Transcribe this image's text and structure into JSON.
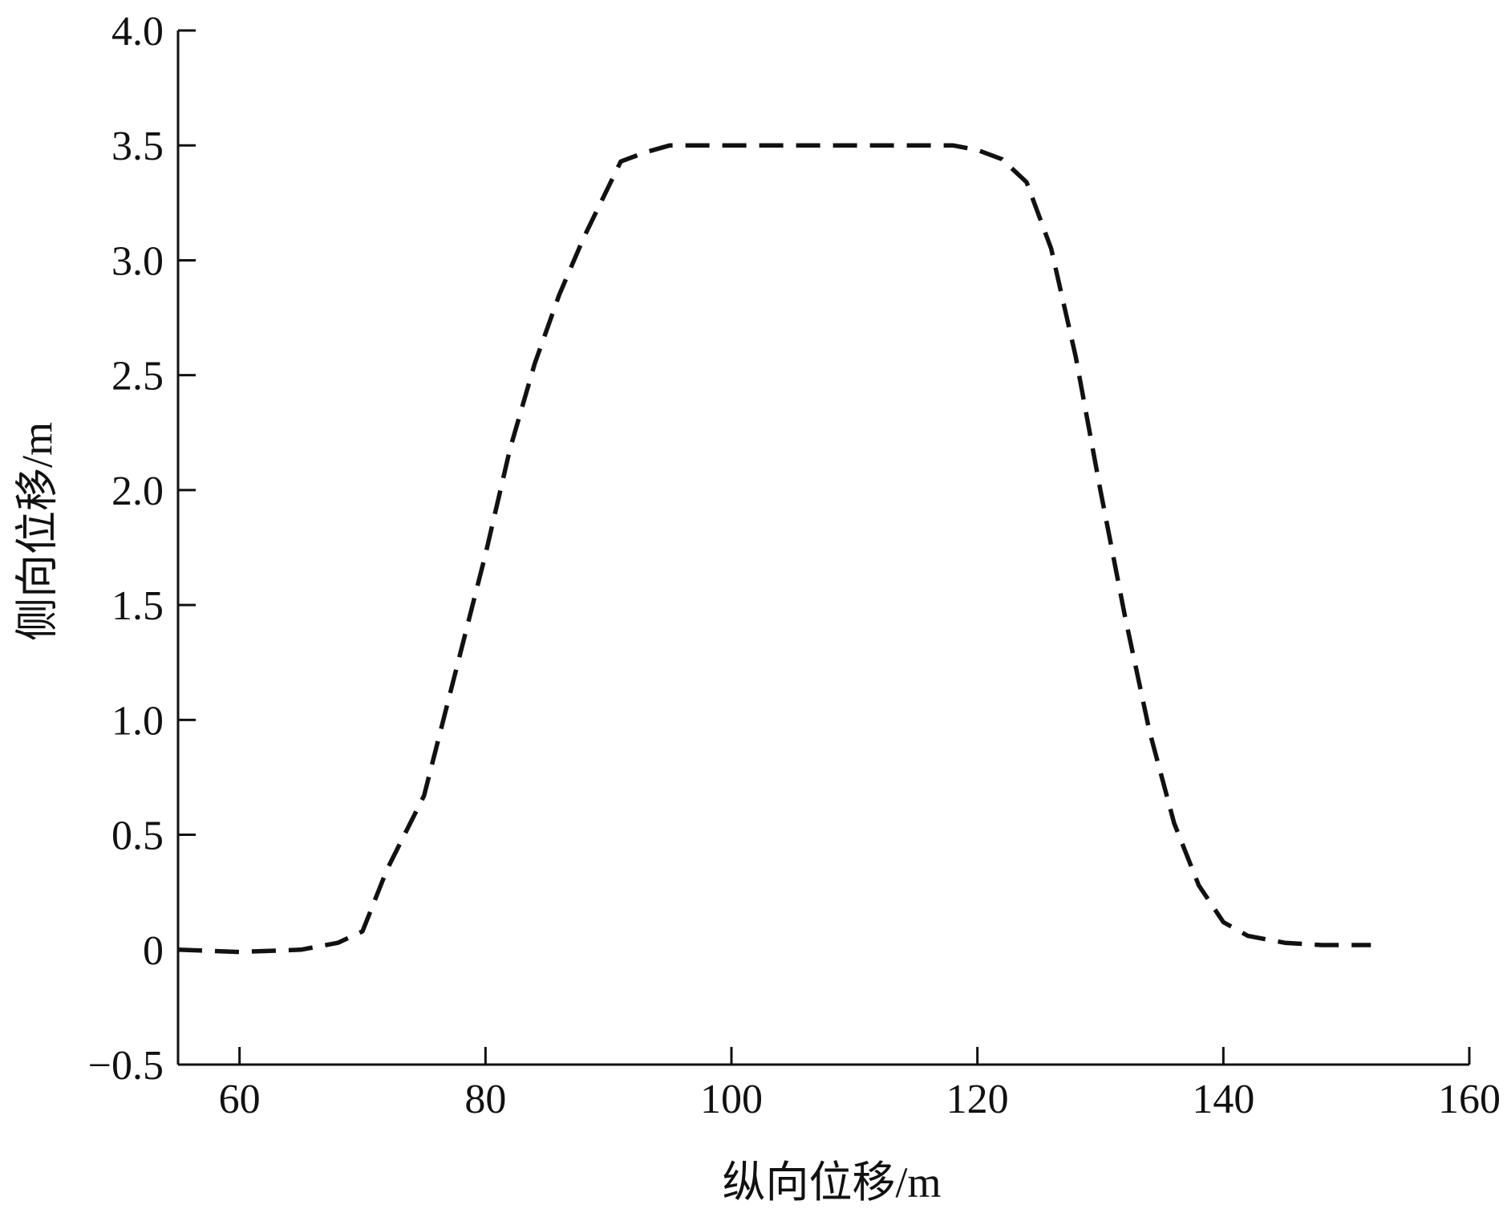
{
  "chart_data": {
    "type": "line",
    "title": "",
    "xlabel": "纵向位移/m",
    "ylabel": "侧向位移/m",
    "xlim": [
      55,
      160
    ],
    "ylim": [
      -0.5,
      4.0
    ],
    "grid": false,
    "legend": "none",
    "line_style": "dashed",
    "line_color": "#111111",
    "x_ticks": [
      {
        "value": 60,
        "label": "60"
      },
      {
        "value": 80,
        "label": "80"
      },
      {
        "value": 100,
        "label": "100"
      },
      {
        "value": 120,
        "label": "120"
      },
      {
        "value": 140,
        "label": "140"
      },
      {
        "value": 160,
        "label": "160"
      }
    ],
    "y_ticks": [
      {
        "value": -0.5,
        "label": "−0.5"
      },
      {
        "value": 0,
        "label": "0"
      },
      {
        "value": 0.5,
        "label": "0.5"
      },
      {
        "value": 1.0,
        "label": "1.0"
      },
      {
        "value": 1.5,
        "label": "1.5"
      },
      {
        "value": 2.0,
        "label": "2.0"
      },
      {
        "value": 2.5,
        "label": "2.5"
      },
      {
        "value": 3.0,
        "label": "3.0"
      },
      {
        "value": 3.5,
        "label": "3.5"
      },
      {
        "value": 4.0,
        "label": "4.0"
      }
    ],
    "series": [
      {
        "x": [
          55,
          60,
          65,
          68,
          70,
          72,
          75,
          78,
          80,
          82,
          84,
          86,
          88,
          90,
          91,
          93,
          95,
          100,
          110,
          118,
          120,
          122,
          124,
          126,
          128,
          130,
          132,
          134,
          136,
          138,
          140,
          142,
          145,
          148,
          152
        ],
        "y": [
          0.0,
          -0.01,
          0.0,
          0.03,
          0.08,
          0.35,
          0.67,
          1.3,
          1.72,
          2.18,
          2.55,
          2.85,
          3.1,
          3.32,
          3.43,
          3.47,
          3.5,
          3.5,
          3.5,
          3.5,
          3.48,
          3.44,
          3.34,
          3.05,
          2.58,
          2.0,
          1.45,
          0.95,
          0.55,
          0.28,
          0.12,
          0.06,
          0.03,
          0.02,
          0.02
        ]
      }
    ]
  }
}
